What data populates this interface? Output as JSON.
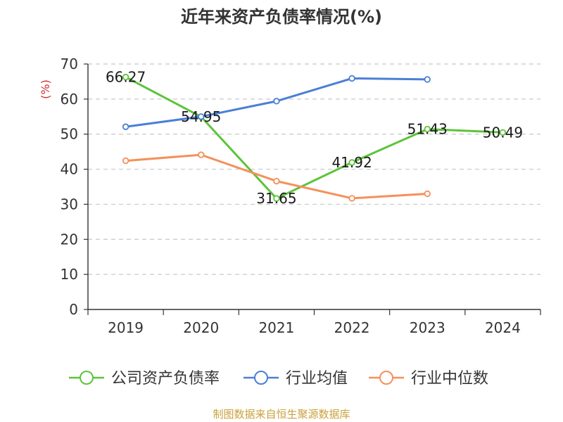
{
  "chart_data": {
    "type": "line",
    "title": "近年来资产负债率情况(%)",
    "ylabel": "(%)",
    "xlabel": "",
    "categories": [
      "2019",
      "2020",
      "2021",
      "2022",
      "2023",
      "2024"
    ],
    "ylim": [
      0,
      70
    ],
    "yticks": [
      0,
      10,
      20,
      30,
      40,
      50,
      60,
      70
    ],
    "grid": true,
    "legend_position": "bottom",
    "series": [
      {
        "name": "公司资产负债率",
        "color": "#5cc43a",
        "values": [
          66.27,
          54.95,
          31.65,
          41.92,
          51.43,
          50.49
        ],
        "labels": [
          "66.27",
          "54.95",
          "31.65",
          "41.92",
          "51.43",
          "50.49"
        ]
      },
      {
        "name": "行业均值",
        "color": "#4a7fd6",
        "values": [
          52.1,
          55.0,
          59.4,
          65.9,
          65.6,
          null
        ]
      },
      {
        "name": "行业中位数",
        "color": "#f5905a",
        "values": [
          42.4,
          44.1,
          36.6,
          31.7,
          33.0,
          null
        ]
      }
    ]
  },
  "footer": {
    "source": "制图数据来自恒生聚源数据库"
  }
}
